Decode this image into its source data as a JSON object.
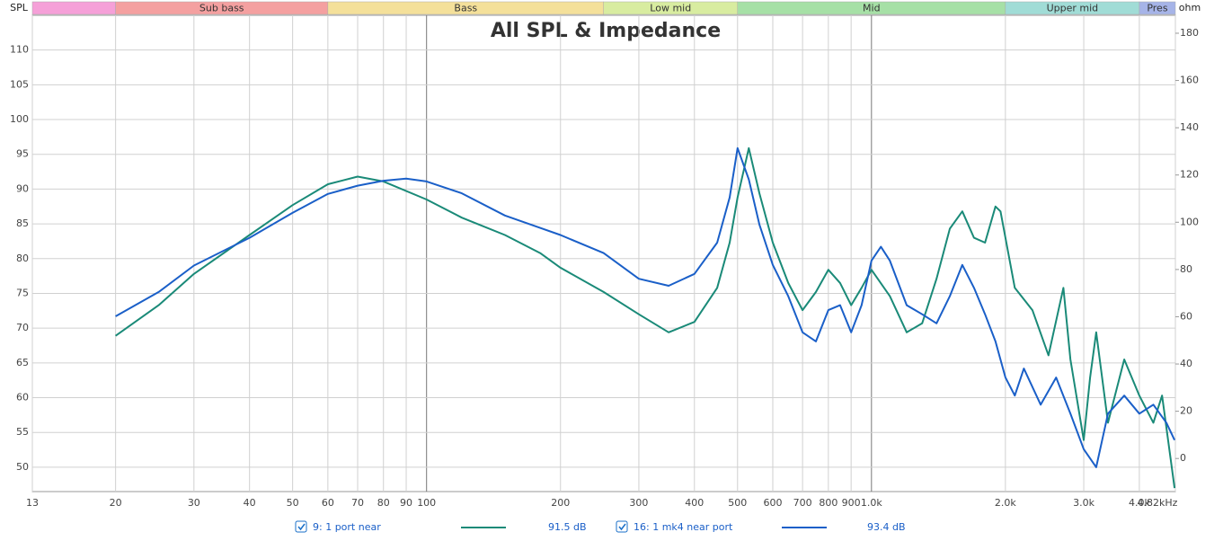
{
  "chart_data": {
    "type": "line",
    "title": "All SPL & Impedance",
    "y_label": "SPL",
    "y2_label": "ohm",
    "x_scale": "log",
    "grid": true,
    "xlim": [
      13,
      4820
    ],
    "xticks": [
      13,
      20,
      30,
      40,
      50,
      60,
      70,
      80,
      90,
      100,
      200,
      300,
      400,
      500,
      600,
      700,
      800,
      900,
      {
        "value": 1000,
        "label": "1.0k"
      },
      {
        "value": 2000,
        "label": "2.0k"
      },
      {
        "value": 3000,
        "label": "3.0k"
      },
      {
        "value": 4000,
        "label": "4.0k"
      },
      {
        "value": 4820,
        "label": "4.82kHz"
      }
    ],
    "ylim": [
      46.5,
      115
    ],
    "yticks": [
      50,
      55,
      60,
      65,
      70,
      75,
      80,
      85,
      90,
      95,
      100,
      105,
      110
    ],
    "y2lim": [
      -14,
      187.6
    ],
    "y2ticks": [
      0,
      20,
      40,
      60,
      80,
      100,
      120,
      140,
      160,
      180
    ],
    "bands": {
      "labels": [
        null,
        "Sub bass",
        "Bass",
        "Low mid",
        "Mid",
        "Upper mid",
        "Pres"
      ],
      "edges": [
        13,
        20,
        60,
        250,
        500,
        2000,
        4000,
        4820
      ],
      "colors": [
        "#f5a0d8",
        "#f4a0a0",
        "#f4e09a",
        "#d8eca0",
        "#a6e0a6",
        "#a0dcd6",
        "#a6b4e8"
      ]
    },
    "series": [
      {
        "name": "9: 1 port near",
        "color": "#1a8a78",
        "legend_value": "91.5 dB",
        "x": [
          20,
          25,
          30,
          40,
          50,
          60,
          70,
          80,
          100,
          120,
          150,
          180,
          200,
          250,
          300,
          350,
          400,
          450,
          480,
          500,
          530,
          560,
          600,
          650,
          700,
          750,
          800,
          850,
          900,
          950,
          1000,
          1100,
          1200,
          1300,
          1400,
          1500,
          1600,
          1700,
          1800,
          1900,
          1950,
          2100,
          2300,
          2500,
          2700,
          2800,
          3000,
          3100,
          3200,
          3400,
          3700,
          4000,
          4300,
          4500,
          4800
        ],
        "values": [
          68.9,
          73.3,
          77.8,
          83.4,
          87.7,
          90.7,
          91.8,
          91.1,
          88.5,
          85.9,
          83.4,
          80.8,
          78.7,
          75.2,
          72.0,
          69.4,
          70.9,
          75.8,
          82.3,
          88.8,
          95.9,
          89.4,
          82.3,
          76.5,
          72.6,
          75.2,
          78.4,
          76.5,
          73.3,
          75.8,
          78.4,
          74.6,
          69.4,
          70.7,
          77.1,
          84.3,
          86.8,
          83.0,
          82.3,
          87.5,
          86.8,
          75.8,
          72.6,
          66.1,
          75.8,
          65.5,
          53.9,
          62.9,
          69.4,
          56.4,
          65.5,
          60.3,
          56.4,
          60.3,
          47
        ]
      },
      {
        "name": "16: 1 mk4 near port",
        "color": "#1a5fc8",
        "legend_value": "93.4 dB",
        "x": [
          20,
          25,
          30,
          40,
          50,
          60,
          70,
          80,
          90,
          100,
          120,
          150,
          200,
          250,
          300,
          350,
          400,
          450,
          480,
          500,
          530,
          560,
          600,
          650,
          700,
          750,
          800,
          850,
          900,
          950,
          1000,
          1050,
          1100,
          1200,
          1300,
          1400,
          1500,
          1600,
          1700,
          1800,
          1900,
          2000,
          2100,
          2200,
          2400,
          2600,
          2800,
          3000,
          3200,
          3400,
          3700,
          4000,
          4300,
          4600,
          4800
        ],
        "values": [
          71.7,
          75.2,
          79.0,
          83.0,
          86.6,
          89.3,
          90.5,
          91.2,
          91.5,
          91.1,
          89.4,
          86.2,
          83.4,
          80.8,
          77.1,
          76.1,
          77.8,
          82.3,
          88.8,
          95.9,
          91.4,
          84.9,
          79.1,
          74.6,
          69.4,
          68.1,
          72.6,
          73.3,
          69.4,
          73.3,
          79.7,
          81.7,
          79.7,
          73.3,
          72.0,
          70.7,
          74.6,
          79.1,
          75.8,
          72.0,
          68.1,
          62.9,
          60.3,
          64.2,
          59.0,
          62.9,
          57.7,
          52.6,
          50.0,
          57.7,
          60.3,
          57.7,
          59.0,
          56.4,
          53.9
        ]
      }
    ]
  }
}
